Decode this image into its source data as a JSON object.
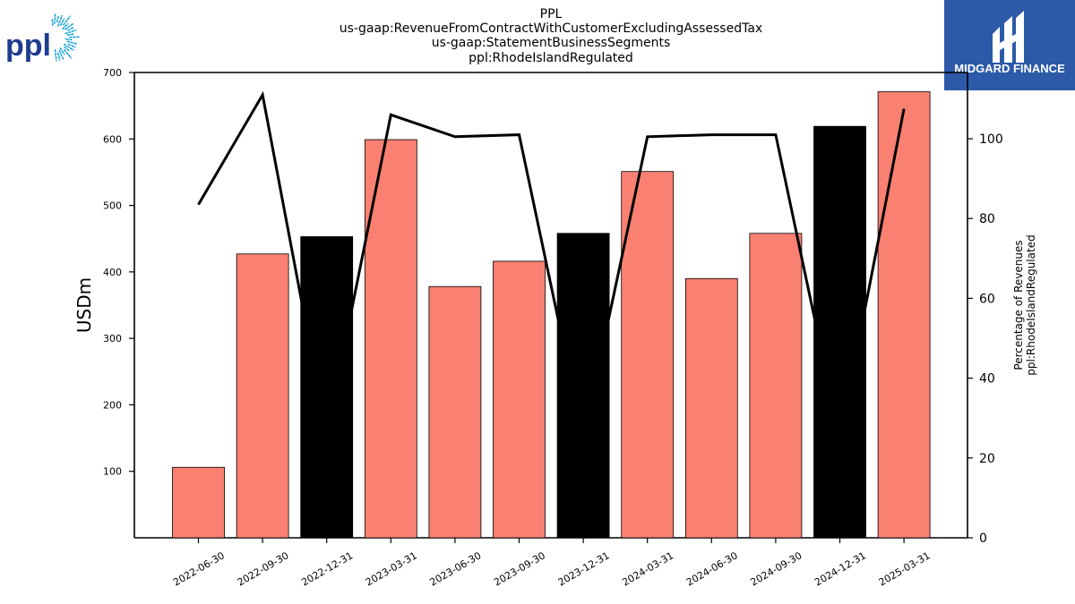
{
  "title_lines": [
    "PPL",
    "us-gaap:RevenueFromContractWithCustomerExcludingAssessedTax",
    "us-gaap:StatementBusinessSegments",
    "ppl:RhodeIslandRegulated"
  ],
  "logos": {
    "left_text": "ppl",
    "right_text": "MIDGARD FINANCE",
    "right_bg": "#2c5aa8",
    "left_color": "#1f3c8f",
    "left_rays_color": "#1aa3d9"
  },
  "chart_data": {
    "type": "bar",
    "categories": [
      "2022-06-30",
      "2022-09-30",
      "2022-12-31",
      "2023-03-31",
      "2023-06-30",
      "2023-09-30",
      "2023-12-31",
      "2024-03-31",
      "2024-06-30",
      "2024-09-30",
      "2024-12-31",
      "2025-03-31"
    ],
    "series": [
      {
        "values": [
          106,
          427,
          453,
          599,
          378,
          416,
          458,
          551,
          390,
          458,
          619,
          671
        ],
        "colors": [
          "#fa8072",
          "#fa8072",
          "#000000",
          "#fa8072",
          "#fa8072",
          "#fa8072",
          "#000000",
          "#fa8072",
          "#fa8072",
          "#fa8072",
          "#000000",
          "#fa8072"
        ],
        "axis": "left"
      },
      {
        "type": "line",
        "values": [
          83.5,
          111,
          26,
          106,
          100.5,
          101,
          25,
          100.5,
          101,
          101,
          25,
          107.5
        ],
        "color": "#000000",
        "axis": "right"
      }
    ],
    "ylabel": "USDm",
    "ylabel2": "Percentage of Revenues\nppl:RhodeIslandRegulated",
    "ylim": [
      0,
      700
    ],
    "ylim2": [
      0,
      116.6
    ],
    "yticks": [
      100,
      200,
      300,
      400,
      500,
      600,
      700
    ],
    "yticks2": [
      0,
      20,
      40,
      60,
      80,
      100
    ],
    "grid": false
  }
}
